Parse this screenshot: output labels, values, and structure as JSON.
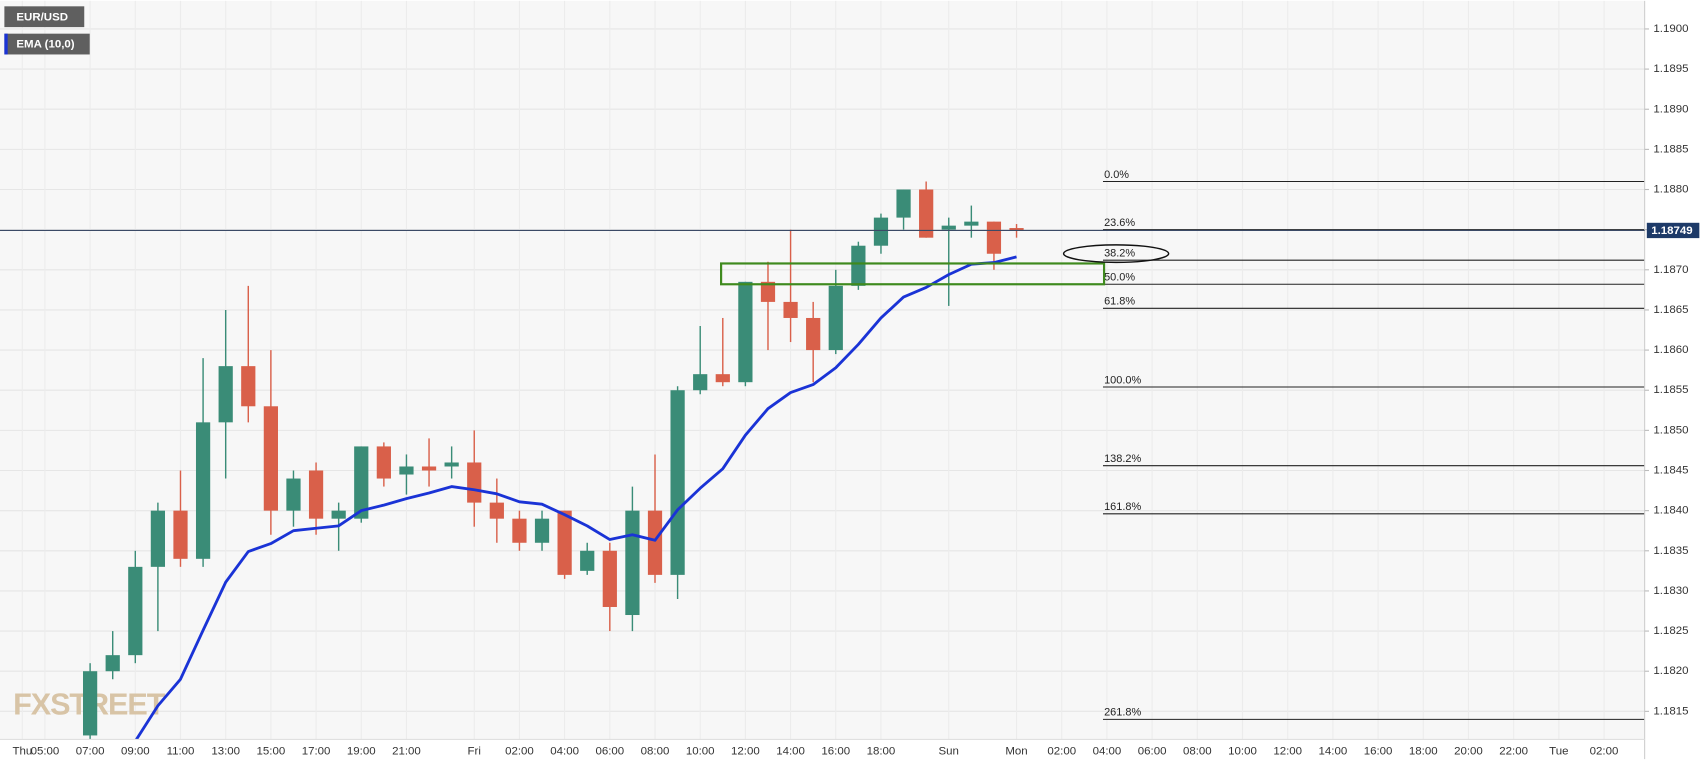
{
  "chart_data": {
    "type": "candlestick",
    "categories": [
      "Thu",
      "05:00",
      null,
      "07:00",
      null,
      "09:00",
      null,
      "11:00",
      null,
      "13:00",
      null,
      "15:00",
      null,
      "17:00",
      null,
      "19:00",
      null,
      "21:00",
      null,
      null,
      "Fri",
      null,
      "02:00",
      null,
      "04:00",
      null,
      "06:00",
      null,
      "08:00",
      null,
      "10:00",
      null,
      "12:00",
      null,
      "14:00",
      null,
      "16:00",
      null,
      "18:00",
      null,
      null,
      "Sun",
      null,
      null,
      "Mon",
      null,
      "02:00",
      null,
      "04:00",
      null,
      "06:00",
      null,
      "08:00",
      null,
      "10:00",
      null,
      "12:00",
      null,
      "14:00",
      null,
      "16:00",
      null,
      "18:00",
      null,
      "20:00",
      null,
      "22:00",
      null,
      "Tue",
      null,
      "02:00",
      null
    ],
    "series": [
      {
        "name": "EUR/USD",
        "up_color": "#3a8c77",
        "down_color": "#d9604a",
        "open": [
          null,
          null,
          null,
          1.1812,
          1.182,
          1.1822,
          1.1833,
          1.184,
          1.1834,
          1.1851,
          1.1858,
          1.1853,
          1.184,
          1.1845,
          1.1839,
          1.1839,
          1.1848,
          1.18445,
          1.18455,
          1.18455,
          1.1846,
          1.1841,
          1.1839,
          1.1836,
          1.184,
          1.18325,
          1.1835,
          1.1827,
          1.184,
          1.1832,
          1.1855,
          1.1857,
          1.1856,
          1.18685,
          1.1866,
          1.1864,
          1.186,
          1.1868,
          1.1873,
          1.18765,
          1.188,
          1.1875,
          1.18755,
          1.1876,
          1.18752,
          null,
          null,
          null,
          null,
          null,
          null,
          null,
          null,
          null,
          null,
          null,
          null,
          null,
          null,
          null,
          null,
          null,
          null,
          null,
          null,
          null,
          null,
          null,
          null,
          null,
          null,
          null
        ],
        "high": [
          null,
          null,
          null,
          1.1821,
          1.1825,
          1.1835,
          1.1841,
          1.1845,
          1.1859,
          1.1865,
          1.1868,
          1.186,
          1.1845,
          1.1846,
          1.1841,
          1.1848,
          1.18485,
          1.1847,
          1.1849,
          1.1848,
          1.185,
          1.1844,
          1.184,
          1.184,
          1.184,
          1.1836,
          1.1836,
          1.1843,
          1.1847,
          1.18555,
          1.1863,
          1.1864,
          1.18685,
          1.1871,
          1.1875,
          1.1866,
          1.187,
          1.18735,
          1.1877,
          1.188,
          1.1881,
          1.18765,
          1.1878,
          1.1876,
          1.18757,
          null,
          null,
          null,
          null,
          null,
          null,
          null,
          null,
          null,
          null,
          null,
          null,
          null,
          null,
          null,
          null,
          null,
          null,
          null,
          null,
          null,
          null,
          null,
          null,
          null,
          null,
          null
        ],
        "low": [
          null,
          null,
          null,
          1.181,
          1.1819,
          1.1821,
          1.1825,
          1.1833,
          1.1833,
          1.1844,
          1.1851,
          1.1837,
          1.1838,
          1.1837,
          1.1835,
          1.18385,
          1.1843,
          1.1842,
          1.1843,
          1.1844,
          1.1838,
          1.1836,
          1.1835,
          1.1835,
          1.18315,
          1.1832,
          1.1825,
          1.1825,
          1.1831,
          1.1829,
          1.18545,
          1.18555,
          1.18555,
          1.186,
          1.1861,
          1.1856,
          1.18595,
          1.18675,
          1.1872,
          1.1875,
          1.1874,
          1.18655,
          1.1874,
          1.187,
          1.1874,
          null,
          null,
          null,
          null,
          null,
          null,
          null,
          null,
          null,
          null,
          null,
          null,
          null,
          null,
          null,
          null,
          null,
          null,
          null,
          null,
          null,
          null,
          null,
          null,
          null,
          null,
          null
        ],
        "close": [
          null,
          null,
          null,
          1.182,
          1.1822,
          1.1833,
          1.184,
          1.1834,
          1.1851,
          1.1858,
          1.1853,
          1.184,
          1.1844,
          1.1839,
          1.184,
          1.1848,
          1.1844,
          1.18455,
          1.1845,
          1.1846,
          1.1841,
          1.1839,
          1.1836,
          1.1839,
          1.1832,
          1.1835,
          1.1828,
          1.184,
          1.1832,
          1.1855,
          1.1857,
          1.1856,
          1.18685,
          1.1866,
          1.1864,
          1.186,
          1.1868,
          1.1873,
          1.18765,
          1.188,
          1.1874,
          1.18755,
          1.1876,
          1.1872,
          1.18749,
          null,
          null,
          null,
          null,
          null,
          null,
          null,
          null,
          null,
          null,
          null,
          null,
          null,
          null,
          null,
          null,
          null,
          null,
          null,
          null,
          null,
          null,
          null,
          null,
          null,
          null,
          null
        ]
      },
      {
        "name": "EMA (10,0)",
        "type": "line",
        "color": "#1a33d6",
        "values": [
          null,
          null,
          null,
          null,
          null,
          1.18113,
          1.18157,
          1.1819,
          1.18251,
          1.18311,
          1.18349,
          1.18359,
          1.18375,
          1.18378,
          1.18381,
          1.184,
          1.18407,
          1.18415,
          1.18422,
          1.1843,
          1.18426,
          1.18421,
          1.18411,
          1.18408,
          1.18395,
          1.18381,
          1.18364,
          1.1837,
          1.18363,
          1.18401,
          1.18428,
          1.18452,
          1.18494,
          1.18527,
          1.18547,
          1.18557,
          1.18578,
          1.18607,
          1.1864,
          1.18666,
          1.18678,
          1.18694,
          1.18707,
          1.18709,
          1.18716,
          null,
          null,
          null,
          null,
          null,
          null,
          null,
          null,
          null,
          null,
          null,
          null,
          null,
          null,
          null,
          null,
          null,
          null,
          null,
          null,
          null,
          null,
          null,
          null,
          null,
          null,
          null
        ]
      }
    ],
    "ylim": [
      1.18115,
      1.19035
    ],
    "yticks": [
      {
        "value": 1.1815,
        "label": "1.1815"
      },
      {
        "value": 1.182,
        "label": "1.1820"
      },
      {
        "value": 1.1825,
        "label": "1.1825"
      },
      {
        "value": 1.183,
        "label": "1.1830"
      },
      {
        "value": 1.1835,
        "label": "1.1835"
      },
      {
        "value": 1.184,
        "label": "1.1840"
      },
      {
        "value": 1.1845,
        "label": "1.1845"
      },
      {
        "value": 1.185,
        "label": "1.1850"
      },
      {
        "value": 1.1855,
        "label": "1.1855"
      },
      {
        "value": 1.186,
        "label": "1.1860"
      },
      {
        "value": 1.1865,
        "label": "1.1865"
      },
      {
        "value": 1.187,
        "label": "1.1870"
      },
      {
        "value": 1.1875,
        "label": "1.1875"
      },
      {
        "value": 1.188,
        "label": "1.1880"
      },
      {
        "value": 1.1885,
        "label": "1.1885"
      },
      {
        "value": 1.189,
        "label": "1.1890"
      },
      {
        "value": 1.1895,
        "label": "1.1895"
      },
      {
        "value": 1.19,
        "label": "1.1900"
      }
    ],
    "grid": true,
    "current_price": 1.18749,
    "fib_levels": [
      {
        "label": "0.0%",
        "value": 1.1881
      },
      {
        "label": "23.6%",
        "value": 1.1875
      },
      {
        "label": "38.2%",
        "value": 1.18712
      },
      {
        "label": "50.0%",
        "value": 1.18682
      },
      {
        "label": "61.8%",
        "value": 1.18652
      },
      {
        "label": "100.0%",
        "value": 1.18554
      },
      {
        "label": "138.2%",
        "value": 1.18456
      },
      {
        "label": "161.8%",
        "value": 1.18396
      },
      {
        "label": "261.8%",
        "value": 1.1814
      }
    ],
    "watermark": "FXSTREET"
  }
}
